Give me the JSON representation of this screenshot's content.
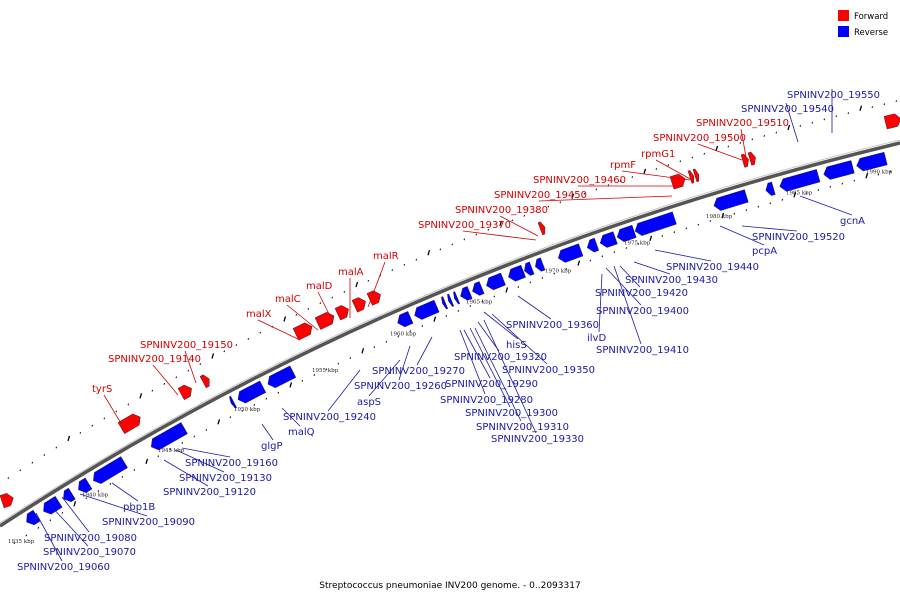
{
  "colors": {
    "forward": "#ff0000",
    "reverse": "#0000ff",
    "forward_label": "#d40000",
    "reverse_label": "#1a1aa6",
    "backbone": "#555555"
  },
  "legend": [
    {
      "key": "forward",
      "label": "Forward"
    },
    {
      "key": "reverse",
      "label": "Reverse"
    }
  ],
  "caption": "Streptococcus pneumoniae INV200 genome. - 0..2093317",
  "scale_labels": [
    "1935 kbp",
    "1940 kbp",
    "1945 kbp",
    "1950 kbp",
    "1955 kbp",
    "1960 kbp",
    "1965 kbp",
    "1970 kbp",
    "1975 kbp",
    "1980 kbp",
    "1985 kbp",
    "1990 kbp"
  ],
  "forward_labels": [
    "tyrS",
    "SPNINV200_19140",
    "SPNINV200_19150",
    "malX",
    "malC",
    "malD",
    "malA",
    "malR",
    "SPNINV200_19370",
    "SPNINV200_19380",
    "SPNINV200_19450",
    "SPNINV200_19460",
    "rpmF",
    "rpmG1",
    "SPNINV200_19500",
    "SPNINV200_19510"
  ],
  "reverse_labels": [
    "SPNINV200_19060",
    "SPNINV200_19070",
    "SPNINV200_19080",
    "SPNINV200_19090",
    "pbp1B",
    "SPNINV200_19120",
    "SPNINV200_19130",
    "SPNINV200_19160",
    "glgP",
    "malQ",
    "SPNINV200_19240",
    "aspS",
    "SPNINV200_19260",
    "SPNINV200_19270",
    "SPNINV200_19280",
    "SPNINV200_19290",
    "SPNINV200_19300",
    "SPNINV200_19310",
    "SPNINV200_19320",
    "SPNINV200_19330",
    "hisS",
    "SPNINV200_19350",
    "SPNINV200_19360",
    "ilvD",
    "SPNINV200_19400",
    "SPNINV200_19410",
    "SPNINV200_19420",
    "SPNINV200_19430",
    "SPNINV200_19440",
    "pcpA",
    "SPNINV200_19520",
    "gcnA",
    "SPNINV200_19540",
    "SPNINV200_19550"
  ]
}
